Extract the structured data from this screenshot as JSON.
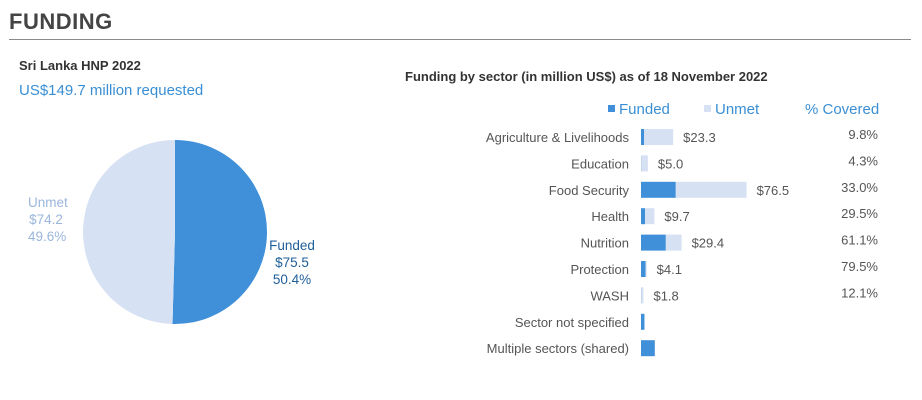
{
  "heading": "FUNDING",
  "plan_name": "Sri Lanka HNP 2022",
  "requested": "US$149.7 million requested",
  "colors": {
    "funded": "#3f8fd9",
    "unmet": "#d6e1f3",
    "text_blue": "#3a8fd4"
  },
  "chart_data": [
    {
      "type": "pie",
      "slices": [
        {
          "label": "Funded",
          "value": 75.5,
          "value_text": "$75.5",
          "percent_text": "50.4%"
        },
        {
          "label": "Unmet",
          "value": 74.2,
          "value_text": "$74.2",
          "percent_text": "49.6%"
        }
      ]
    },
    {
      "type": "bar",
      "orientation": "horizontal",
      "stacked": true,
      "title": "Funding by sector (in million US$) as of 18 November 2022",
      "legend": [
        "Funded",
        "Unmet"
      ],
      "covered_header": "% Covered",
      "categories": [
        "Agriculture & Livelihoods",
        "Education",
        "Food Security",
        "Health",
        "Nutrition",
        "Protection",
        "WASH",
        "Sector not specified",
        "Multiple sectors (shared)"
      ],
      "series": [
        {
          "name": "Funded",
          "values": [
            2.3,
            0.2,
            25.2,
            2.9,
            18.0,
            3.3,
            0.2,
            2.5,
            10.0
          ]
        },
        {
          "name": "Unmet",
          "values": [
            21.0,
            4.8,
            51.3,
            6.8,
            11.4,
            0.8,
            1.6,
            0,
            0
          ]
        }
      ],
      "requirement_labels": [
        "$23.3",
        "$5.0",
        "$76.5",
        "$9.7",
        "$29.4",
        "$4.1",
        "$1.8",
        "",
        ""
      ],
      "covered_labels": [
        "9.8%",
        "4.3%",
        "33.0%",
        "29.5%",
        "61.1%",
        "79.5%",
        "12.1%",
        "",
        ""
      ]
    }
  ]
}
